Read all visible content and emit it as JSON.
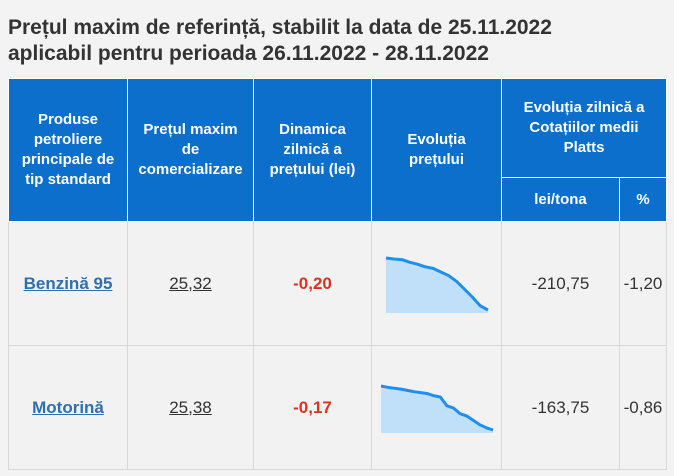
{
  "title": {
    "line1": "Prețul maxim de referință, stabilit la data de 25.11.2022",
    "line2": "aplicabil pentru perioada 26.11.2022 - 28.11.2022"
  },
  "table": {
    "headers": {
      "products": [
        "Produse",
        "petroliere",
        "principale de",
        "tip standard"
      ],
      "max_price": [
        "Prețul maxim",
        "de",
        "comercializare"
      ],
      "dynamics": [
        "Dinamica",
        "zilnică a",
        "prețului (lei)"
      ],
      "evolution": [
        "Evoluția",
        "prețului"
      ],
      "platts": [
        "Evoluția zilnică a",
        "Cotațiilor medii",
        "Platts"
      ],
      "lei_tona": "lei/tona",
      "percent": "%"
    },
    "rows": [
      {
        "product": "Benzină 95",
        "price": "25,32",
        "dynamics": "-0,20",
        "lei_tona": "-210,75",
        "percent": "-1,20",
        "trend": [
          1.0,
          0.98,
          0.97,
          0.92,
          0.88,
          0.83,
          0.8,
          0.73,
          0.66,
          0.55,
          0.4,
          0.25,
          0.08,
          0.0
        ]
      },
      {
        "product": "Motorină",
        "price": "25,38",
        "dynamics": "-0,17",
        "lei_tona": "-163,75",
        "percent": "-0,86",
        "trend": [
          1.0,
          0.97,
          0.95,
          0.93,
          0.9,
          0.87,
          0.85,
          0.83,
          0.78,
          0.75,
          0.55,
          0.5,
          0.37,
          0.32,
          0.22,
          0.12,
          0.05,
          0.0
        ]
      }
    ]
  },
  "colors": {
    "header_bg": "#0b6fcb",
    "link": "#2d6fb0",
    "negative": "#e0301e",
    "spark_line": "#1e8ff0",
    "spark_fill": "#bfe0f8"
  }
}
